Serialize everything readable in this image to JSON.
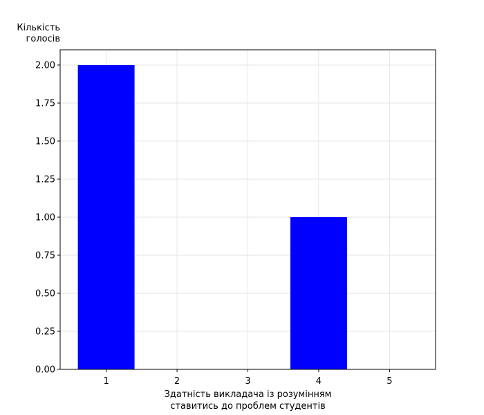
{
  "chart_data": {
    "type": "bar",
    "categories": [
      "1",
      "2",
      "3",
      "4",
      "5"
    ],
    "x": [
      1,
      2,
      3,
      4,
      5
    ],
    "values": [
      2,
      0,
      0,
      1,
      0
    ],
    "title": "",
    "xlabel_lines": [
      "Здатність викладача із розумінням",
      "ставитись до проблем студентів"
    ],
    "ylabel_lines": [
      "Кількість",
      "голосів"
    ],
    "xlim": [
      0.35,
      5.65
    ],
    "ylim": [
      0,
      2.1
    ],
    "yticks": [
      0.0,
      0.25,
      0.5,
      0.75,
      1.0,
      1.25,
      1.5,
      1.75,
      2.0
    ],
    "ytick_labels": [
      "0.00",
      "0.25",
      "0.50",
      "0.75",
      "1.00",
      "1.25",
      "1.50",
      "1.75",
      "2.00"
    ],
    "xticks": [
      1,
      2,
      3,
      4,
      5
    ],
    "bar_width": 0.8,
    "bar_color": "#0000ff",
    "grid": true,
    "legend": "none"
  }
}
